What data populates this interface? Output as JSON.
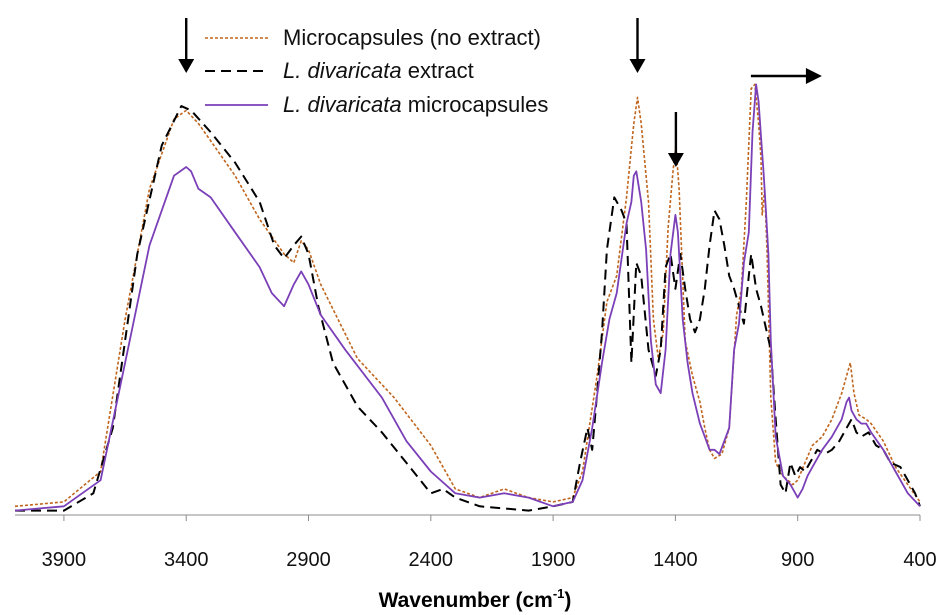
{
  "chart_data": {
    "type": "line",
    "title": "",
    "xlabel": "Wavenumber (cm",
    "xlabel_sup": "-1",
    "xlabel_close": ")",
    "ylabel": "",
    "xlim": [
      4100,
      400
    ],
    "x_reversed": true,
    "ylim": [
      0,
      1.0
    ],
    "y_axis_visible": false,
    "grid": false,
    "legend_position": "top-center",
    "x_ticks": [
      3900,
      3400,
      2900,
      2400,
      1900,
      1400,
      900,
      400
    ],
    "x_tick_labels": [
      "3900",
      "3400",
      "2900",
      "2400",
      "1900",
      "1400",
      "900",
      "400"
    ],
    "annotations": {
      "arrows_down_at": [
        3400,
        1555,
        1398
      ],
      "arrow_right_near": 1030
    },
    "series": [
      {
        "name_parts": [
          [
            "Microcapsules (no extract)",
            false
          ]
        ],
        "color": "#c0651d",
        "dash": "dotted",
        "points": [
          [
            4100,
            0.02
          ],
          [
            3900,
            0.03
          ],
          [
            3750,
            0.1
          ],
          [
            3650,
            0.45
          ],
          [
            3550,
            0.75
          ],
          [
            3450,
            0.91
          ],
          [
            3400,
            0.93
          ],
          [
            3350,
            0.9
          ],
          [
            3300,
            0.86
          ],
          [
            3200,
            0.78
          ],
          [
            3100,
            0.68
          ],
          [
            3000,
            0.6
          ],
          [
            2960,
            0.58
          ],
          [
            2930,
            0.63
          ],
          [
            2900,
            0.61
          ],
          [
            2850,
            0.53
          ],
          [
            2700,
            0.36
          ],
          [
            2550,
            0.27
          ],
          [
            2400,
            0.16
          ],
          [
            2300,
            0.06
          ],
          [
            2200,
            0.04
          ],
          [
            2100,
            0.06
          ],
          [
            2000,
            0.04
          ],
          [
            1900,
            0.03
          ],
          [
            1820,
            0.04
          ],
          [
            1780,
            0.1
          ],
          [
            1720,
            0.32
          ],
          [
            1680,
            0.49
          ],
          [
            1640,
            0.55
          ],
          [
            1600,
            0.73
          ],
          [
            1570,
            0.9
          ],
          [
            1555,
            0.96
          ],
          [
            1540,
            0.9
          ],
          [
            1510,
            0.72
          ],
          [
            1490,
            0.45
          ],
          [
            1470,
            0.36
          ],
          [
            1450,
            0.42
          ],
          [
            1430,
            0.66
          ],
          [
            1410,
            0.79
          ],
          [
            1398,
            0.85
          ],
          [
            1385,
            0.75
          ],
          [
            1360,
            0.4
          ],
          [
            1330,
            0.32
          ],
          [
            1300,
            0.26
          ],
          [
            1280,
            0.2
          ],
          [
            1260,
            0.15
          ],
          [
            1240,
            0.13
          ],
          [
            1210,
            0.14
          ],
          [
            1180,
            0.2
          ],
          [
            1150,
            0.46
          ],
          [
            1130,
            0.52
          ],
          [
            1110,
            0.72
          ],
          [
            1090,
            0.98
          ],
          [
            1075,
            0.99
          ],
          [
            1060,
            0.9
          ],
          [
            1050,
            0.82
          ],
          [
            1045,
            0.69
          ],
          [
            1035,
            0.75
          ],
          [
            1025,
            0.6
          ],
          [
            1010,
            0.27
          ],
          [
            990,
            0.12
          ],
          [
            960,
            0.09
          ],
          [
            920,
            0.07
          ],
          [
            900,
            0.08
          ],
          [
            870,
            0.12
          ],
          [
            840,
            0.16
          ],
          [
            800,
            0.18
          ],
          [
            760,
            0.22
          ],
          [
            720,
            0.28
          ],
          [
            700,
            0.32
          ],
          [
            685,
            0.35
          ],
          [
            670,
            0.28
          ],
          [
            650,
            0.23
          ],
          [
            620,
            0.22
          ],
          [
            600,
            0.21
          ],
          [
            550,
            0.17
          ],
          [
            500,
            0.11
          ],
          [
            450,
            0.07
          ],
          [
            400,
            0.03
          ]
        ]
      },
      {
        "name_parts": [
          [
            "L. divaricata",
            true
          ],
          [
            " extract",
            false
          ]
        ],
        "color": "#000000",
        "dash": "dashed",
        "points": [
          [
            4100,
            0.01
          ],
          [
            3900,
            0.01
          ],
          [
            3780,
            0.05
          ],
          [
            3700,
            0.2
          ],
          [
            3600,
            0.6
          ],
          [
            3500,
            0.85
          ],
          [
            3420,
            0.94
          ],
          [
            3380,
            0.93
          ],
          [
            3300,
            0.88
          ],
          [
            3200,
            0.81
          ],
          [
            3100,
            0.72
          ],
          [
            3040,
            0.62
          ],
          [
            3000,
            0.59
          ],
          [
            2960,
            0.62
          ],
          [
            2930,
            0.64
          ],
          [
            2900,
            0.6
          ],
          [
            2860,
            0.48
          ],
          [
            2800,
            0.35
          ],
          [
            2700,
            0.25
          ],
          [
            2600,
            0.19
          ],
          [
            2500,
            0.12
          ],
          [
            2400,
            0.05
          ],
          [
            2350,
            0.06
          ],
          [
            2300,
            0.04
          ],
          [
            2200,
            0.02
          ],
          [
            2000,
            0.01
          ],
          [
            1900,
            0.02
          ],
          [
            1820,
            0.03
          ],
          [
            1790,
            0.12
          ],
          [
            1760,
            0.2
          ],
          [
            1740,
            0.15
          ],
          [
            1720,
            0.28
          ],
          [
            1700,
            0.42
          ],
          [
            1680,
            0.61
          ],
          [
            1650,
            0.73
          ],
          [
            1620,
            0.7
          ],
          [
            1600,
            0.67
          ],
          [
            1580,
            0.35
          ],
          [
            1560,
            0.58
          ],
          [
            1540,
            0.55
          ],
          [
            1510,
            0.38
          ],
          [
            1480,
            0.32
          ],
          [
            1460,
            0.38
          ],
          [
            1440,
            0.57
          ],
          [
            1420,
            0.6
          ],
          [
            1400,
            0.52
          ],
          [
            1380,
            0.6
          ],
          [
            1360,
            0.52
          ],
          [
            1340,
            0.45
          ],
          [
            1320,
            0.42
          ],
          [
            1300,
            0.45
          ],
          [
            1280,
            0.52
          ],
          [
            1260,
            0.62
          ],
          [
            1240,
            0.7
          ],
          [
            1220,
            0.68
          ],
          [
            1200,
            0.62
          ],
          [
            1180,
            0.55
          ],
          [
            1160,
            0.52
          ],
          [
            1140,
            0.48
          ],
          [
            1120,
            0.44
          ],
          [
            1100,
            0.55
          ],
          [
            1090,
            0.6
          ],
          [
            1070,
            0.52
          ],
          [
            1050,
            0.48
          ],
          [
            1030,
            0.43
          ],
          [
            1010,
            0.38
          ],
          [
            990,
            0.22
          ],
          [
            970,
            0.07
          ],
          [
            950,
            0.05
          ],
          [
            930,
            0.12
          ],
          [
            910,
            0.09
          ],
          [
            890,
            0.11
          ],
          [
            870,
            0.1
          ],
          [
            850,
            0.12
          ],
          [
            820,
            0.15
          ],
          [
            790,
            0.14
          ],
          [
            760,
            0.15
          ],
          [
            730,
            0.17
          ],
          [
            700,
            0.2
          ],
          [
            680,
            0.22
          ],
          [
            660,
            0.19
          ],
          [
            640,
            0.18
          ],
          [
            610,
            0.19
          ],
          [
            580,
            0.16
          ],
          [
            550,
            0.15
          ],
          [
            520,
            0.12
          ],
          [
            480,
            0.11
          ],
          [
            450,
            0.08
          ],
          [
            420,
            0.05
          ],
          [
            400,
            0.02
          ]
        ]
      },
      {
        "name_parts": [
          [
            "L. divaricata",
            true
          ],
          [
            " microcapsules",
            false
          ]
        ],
        "color": "#7b3fb8",
        "dash": "solid",
        "points": [
          [
            4100,
            0.01
          ],
          [
            3900,
            0.02
          ],
          [
            3750,
            0.08
          ],
          [
            3650,
            0.35
          ],
          [
            3550,
            0.62
          ],
          [
            3450,
            0.78
          ],
          [
            3400,
            0.8
          ],
          [
            3380,
            0.79
          ],
          [
            3350,
            0.75
          ],
          [
            3300,
            0.73
          ],
          [
            3200,
            0.65
          ],
          [
            3100,
            0.57
          ],
          [
            3050,
            0.51
          ],
          [
            3000,
            0.48
          ],
          [
            2960,
            0.53
          ],
          [
            2930,
            0.56
          ],
          [
            2900,
            0.53
          ],
          [
            2850,
            0.46
          ],
          [
            2750,
            0.38
          ],
          [
            2600,
            0.27
          ],
          [
            2500,
            0.17
          ],
          [
            2400,
            0.1
          ],
          [
            2300,
            0.05
          ],
          [
            2200,
            0.04
          ],
          [
            2100,
            0.05
          ],
          [
            2000,
            0.04
          ],
          [
            1900,
            0.02
          ],
          [
            1820,
            0.03
          ],
          [
            1780,
            0.08
          ],
          [
            1740,
            0.2
          ],
          [
            1700,
            0.35
          ],
          [
            1670,
            0.45
          ],
          [
            1640,
            0.51
          ],
          [
            1600,
            0.67
          ],
          [
            1580,
            0.72
          ],
          [
            1570,
            0.78
          ],
          [
            1560,
            0.79
          ],
          [
            1540,
            0.72
          ],
          [
            1520,
            0.61
          ],
          [
            1500,
            0.4
          ],
          [
            1480,
            0.3
          ],
          [
            1460,
            0.28
          ],
          [
            1440,
            0.38
          ],
          [
            1420,
            0.6
          ],
          [
            1400,
            0.69
          ],
          [
            1390,
            0.65
          ],
          [
            1370,
            0.45
          ],
          [
            1350,
            0.35
          ],
          [
            1330,
            0.28
          ],
          [
            1300,
            0.21
          ],
          [
            1280,
            0.18
          ],
          [
            1260,
            0.15
          ],
          [
            1240,
            0.15
          ],
          [
            1220,
            0.14
          ],
          [
            1200,
            0.17
          ],
          [
            1180,
            0.2
          ],
          [
            1160,
            0.38
          ],
          [
            1140,
            0.44
          ],
          [
            1120,
            0.58
          ],
          [
            1100,
            0.65
          ],
          [
            1085,
            0.88
          ],
          [
            1070,
            0.99
          ],
          [
            1060,
            0.95
          ],
          [
            1050,
            0.87
          ],
          [
            1040,
            0.79
          ],
          [
            1030,
            0.7
          ],
          [
            1020,
            0.6
          ],
          [
            1010,
            0.4
          ],
          [
            990,
            0.18
          ],
          [
            960,
            0.09
          ],
          [
            930,
            0.07
          ],
          [
            900,
            0.04
          ],
          [
            880,
            0.06
          ],
          [
            860,
            0.09
          ],
          [
            830,
            0.12
          ],
          [
            800,
            0.15
          ],
          [
            760,
            0.18
          ],
          [
            720,
            0.22
          ],
          [
            700,
            0.26
          ],
          [
            690,
            0.27
          ],
          [
            680,
            0.24
          ],
          [
            660,
            0.22
          ],
          [
            640,
            0.21
          ],
          [
            620,
            0.21
          ],
          [
            600,
            0.19
          ],
          [
            550,
            0.15
          ],
          [
            500,
            0.1
          ],
          [
            450,
            0.05
          ],
          [
            400,
            0.02
          ]
        ]
      }
    ]
  }
}
